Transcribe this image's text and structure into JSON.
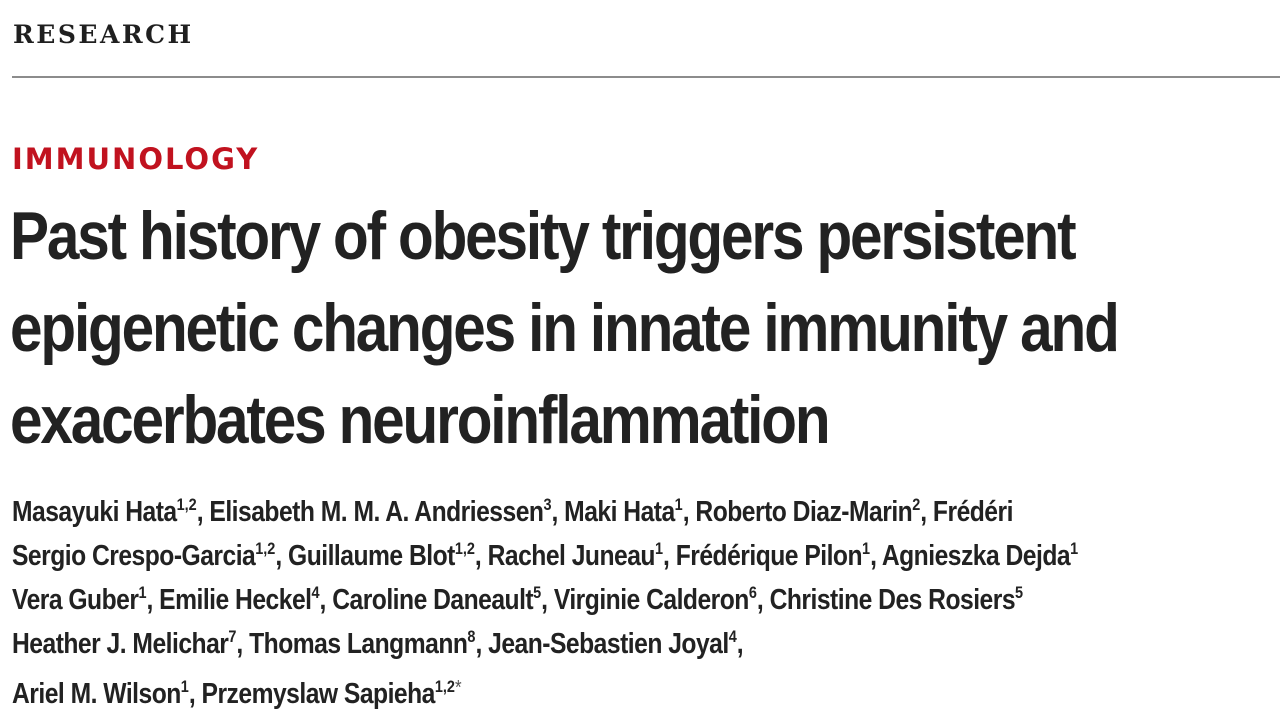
{
  "section_label": "RESEARCH",
  "category": "IMMUNOLOGY",
  "title_lines": [
    "Past history of obesity triggers persistent",
    "epigenetic changes in innate immunity and",
    "exacerbates neuroinflammation"
  ],
  "author_lines": [
    [
      {
        "name": "Masayuki Hata",
        "aff": "1,2",
        "sep": ", "
      },
      {
        "name": "Elisabeth M. M. A. Andriessen",
        "aff": "3",
        "sep": ", "
      },
      {
        "name": "Maki Hata",
        "aff": "1",
        "sep": ", "
      },
      {
        "name": "Roberto Diaz-Marin",
        "aff": "2",
        "sep": ", "
      },
      {
        "name": "Frédéri",
        "aff": "",
        "sep": ""
      }
    ],
    [
      {
        "name": "Sergio Crespo-Garcia",
        "aff": "1,2",
        "sep": ", "
      },
      {
        "name": "Guillaume Blot",
        "aff": "1,2",
        "sep": ", "
      },
      {
        "name": "Rachel Juneau",
        "aff": "1",
        "sep": ", "
      },
      {
        "name": "Frédérique Pilon",
        "aff": "1",
        "sep": ", "
      },
      {
        "name": "Agnieszka Dejda",
        "aff": "1",
        "sep": ""
      }
    ],
    [
      {
        "name": "Vera Guber",
        "aff": "1",
        "sep": ", "
      },
      {
        "name": "Emilie Heckel",
        "aff": "4",
        "sep": ", "
      },
      {
        "name": "Caroline Daneault",
        "aff": "5",
        "sep": ", "
      },
      {
        "name": "Virginie Calderon",
        "aff": "6",
        "sep": ", "
      },
      {
        "name": "Christine Des Rosiers",
        "aff": "5",
        "sep": ""
      }
    ],
    [
      {
        "name": "Heather J. Melichar",
        "aff": "7",
        "sep": ", "
      },
      {
        "name": "Thomas Langmann",
        "aff": "8",
        "sep": ", "
      },
      {
        "name": "Jean-Sebastien Joyal",
        "aff": "4",
        "sep": ","
      }
    ],
    [
      {
        "name": "Ariel M. Wilson",
        "aff": "1",
        "sep": ", "
      },
      {
        "name": "Przemyslaw Sapieha",
        "aff": "1,2",
        "sep": "",
        "mark": "*"
      }
    ]
  ]
}
